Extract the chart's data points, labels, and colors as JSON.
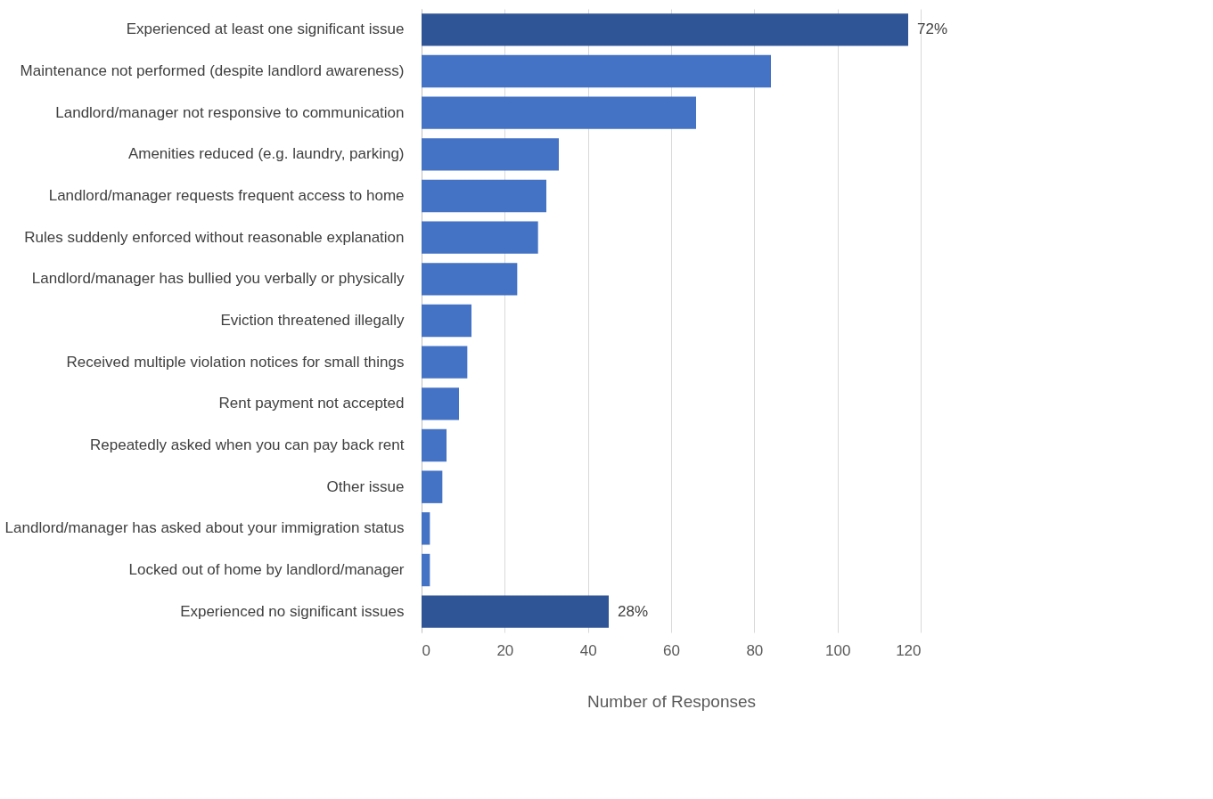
{
  "chart_data": {
    "type": "bar",
    "orientation": "horizontal",
    "xlabel": "Number of Responses",
    "categories": [
      "Experienced at least one significant issue",
      "Maintenance not performed (despite landlord awareness)",
      "Landlord/manager not responsive to communication",
      "Amenities reduced (e.g. laundry, parking)",
      "Landlord/manager requests frequent access to home",
      "Rules suddenly enforced without reasonable explanation",
      "Landlord/manager has bullied you verbally or physically",
      "Eviction threatened illegally",
      "Received multiple violation notices for small things",
      "Rent payment not accepted",
      "Repeatedly asked when you can pay back rent",
      "Other issue",
      "Landlord/manager has asked about your immigration status",
      "Locked out of home by landlord/manager",
      "Experienced no significant issues"
    ],
    "values": [
      117,
      84,
      66,
      33,
      30,
      28,
      23,
      12,
      11,
      9,
      6,
      5,
      2,
      2,
      45
    ],
    "colors": [
      "#2f5597",
      "#4472c4",
      "#4472c4",
      "#4472c4",
      "#4472c4",
      "#4472c4",
      "#4472c4",
      "#4472c4",
      "#4472c4",
      "#4472c4",
      "#4472c4",
      "#4472c4",
      "#4472c4",
      "#4472c4",
      "#2f5597"
    ],
    "annotations": [
      {
        "text": "72%",
        "x": 117,
        "y": "Experienced at least one significant issue"
      },
      {
        "text": "28%",
        "x": 45,
        "y": "Experienced no significant issues"
      }
    ],
    "xlim": [
      0,
      120
    ],
    "xticks": [
      0,
      20,
      40,
      60,
      80,
      100,
      120
    ],
    "grid": "x"
  }
}
